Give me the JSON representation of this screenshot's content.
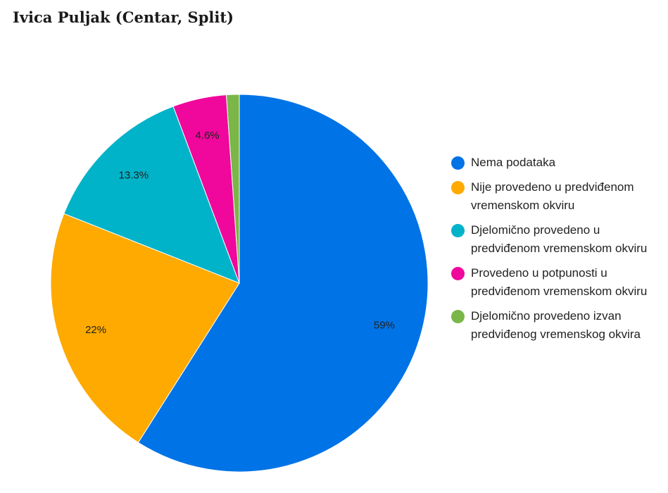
{
  "page": {
    "title": "Ivica Puljak (Centar, Split)"
  },
  "chart_data": {
    "type": "pie",
    "title": "Ivica Puljak (Centar, Split)",
    "legend_position": "right",
    "slices": [
      {
        "label": "Nema podataka",
        "value": 59,
        "display": "59%",
        "color": "#0073E6"
      },
      {
        "label": "Nije provedeno u predviđenom vremenskom okviru",
        "value": 22,
        "display": "22%",
        "color": "#FFAA00"
      },
      {
        "label": "Djelomično provedeno u predviđenom vremenskom okviru",
        "value": 13.3,
        "display": "13.3%",
        "color": "#00B3C8"
      },
      {
        "label": "Provedeno u potpunosti u predviđenom vremenskom okviru",
        "value": 4.6,
        "display": "4.6%",
        "color": "#F0079C"
      },
      {
        "label": "Djelomično provedeno izvan predviđenog vremenskog okvira",
        "value": 1.1,
        "display": "",
        "color": "#7AB648"
      }
    ]
  }
}
